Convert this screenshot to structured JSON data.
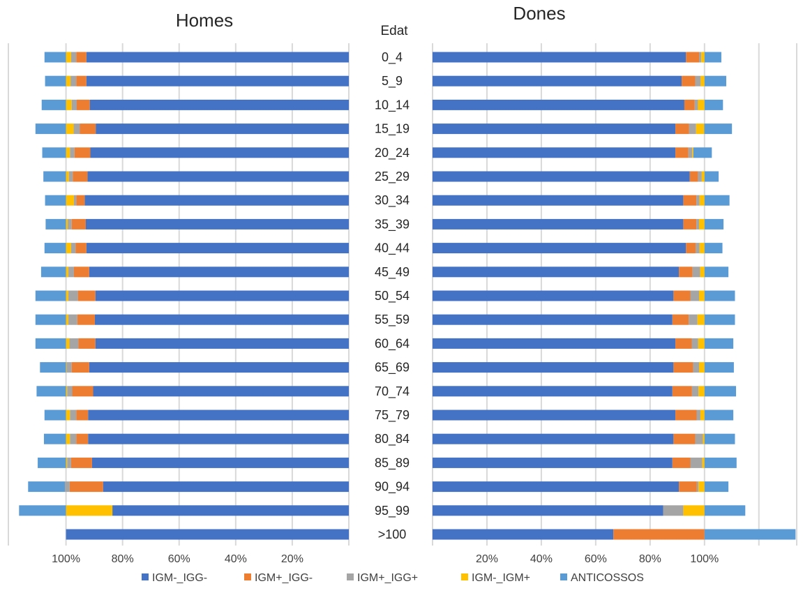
{
  "chart_data": {
    "type": "bar",
    "orientation": "horizontal",
    "stacked": "percent",
    "layout": "population-pyramid",
    "center_axis_title": "Edat",
    "categories": [
      "0_4",
      "5_9",
      "10_14",
      "15_19",
      "20_24",
      "25_29",
      "30_34",
      "35_39",
      "40_44",
      "45_49",
      "50_54",
      "55_59",
      "60_64",
      "65_69",
      "70_74",
      "75_79",
      "80_84",
      "85_89",
      "90_94",
      "95_99",
      ">100"
    ],
    "series_names": [
      "IGM-_IGG-",
      "IGM+_IGG-",
      "IGM+_IGG+",
      "IGM-_IGM+",
      "ANTICOSSOS"
    ],
    "colors": [
      "#4472c4",
      "#ed7d31",
      "#a5a5a5",
      "#ffc000",
      "#5b9bd5"
    ],
    "legend": {
      "position": "bottom"
    },
    "grid": true,
    "panels": [
      {
        "title": "Homes",
        "direction": "leftward",
        "xlim": [
          0,
          120
        ],
        "ticks": [
          {
            "value": 100,
            "label": "100%"
          },
          {
            "value": 80,
            "label": "80%"
          },
          {
            "value": 60,
            "label": "60%"
          },
          {
            "value": 40,
            "label": "40%"
          },
          {
            "value": 20,
            "label": "20%"
          }
        ],
        "series": [
          {
            "name": "IGM-_IGG-",
            "values": [
              92.8,
              92.8,
              91.6,
              89.5,
              91.4,
              92.4,
              93.4,
              93.0,
              92.8,
              91.8,
              89.6,
              89.8,
              89.6,
              91.8,
              90.4,
              92.2,
              92.2,
              90.8,
              86.9,
              83.6,
              100
            ]
          },
          {
            "name": "IGM+_IGG-",
            "values": [
              3.6,
              3.6,
              4.6,
              5.6,
              5.6,
              5.2,
              3.0,
              5.0,
              3.8,
              5.4,
              6.2,
              6.2,
              6.0,
              6.2,
              7.4,
              4.2,
              4.2,
              7.4,
              11.8,
              0,
              0
            ]
          },
          {
            "name": "IGM+_IGG+",
            "values": [
              1.8,
              2.0,
              1.8,
              2.2,
              1.6,
              1.4,
              0.8,
              1.4,
              1.6,
              2.0,
              3.4,
              3.2,
              3.2,
              1.8,
              1.8,
              2.2,
              2.2,
              1.4,
              1.7,
              0,
              0
            ]
          },
          {
            "name": "IGM-_IGM+",
            "values": [
              1.8,
              1.6,
              2.0,
              2.7,
              1.4,
              1.0,
              2.8,
              0.6,
              1.8,
              0.8,
              0.8,
              0.8,
              1.2,
              0.2,
              0.4,
              1.4,
              1.4,
              0.4,
              0,
              16.4,
              0
            ]
          },
          {
            "name": "ANTICOSSOS",
            "values": [
              7.6,
              7.4,
              8.6,
              10.8,
              8.4,
              8.0,
              7.4,
              7.2,
              7.6,
              8.8,
              10.8,
              10.8,
              10.8,
              9.2,
              10.4,
              7.6,
              7.8,
              10.0,
              13.0,
              16.6,
              0
            ]
          }
        ]
      },
      {
        "title": "Dones",
        "direction": "rightward",
        "xlim": [
          0,
          127
        ],
        "ticks": [
          {
            "value": 20,
            "label": "20%"
          },
          {
            "value": 40,
            "label": "40%"
          },
          {
            "value": 60,
            "label": "60%"
          },
          {
            "value": 80,
            "label": "80%"
          },
          {
            "value": 100,
            "label": "100%"
          }
        ],
        "series": [
          {
            "name": "IGM-_IGG-",
            "values": [
              93.2,
              91.6,
              92.6,
              89.3,
              89.3,
              94.6,
              92.2,
              92.2,
              93.2,
              90.6,
              88.6,
              88.2,
              89.3,
              88.6,
              88.2,
              89.3,
              88.6,
              88.2,
              90.6,
              84.8,
              66.5
            ]
          },
          {
            "name": "IGM+_IGG-",
            "values": [
              4.8,
              5.0,
              3.8,
              5.0,
              4.8,
              3.0,
              4.8,
              4.8,
              3.6,
              5.0,
              6.2,
              6.0,
              6.0,
              7.2,
              7.2,
              7.8,
              8.0,
              6.6,
              6.6,
              0,
              33.5
            ]
          },
          {
            "name": "IGM+_IGG+",
            "values": [
              0.8,
              2.0,
              1.2,
              2.6,
              1.4,
              1.4,
              1.2,
              1.0,
              1.4,
              2.8,
              3.2,
              3.2,
              2.4,
              2.2,
              2.4,
              1.4,
              2.8,
              4.4,
              0.6,
              7.4,
              0
            ]
          },
          {
            "name": "IGM-_IGM+",
            "values": [
              1.2,
              1.4,
              2.4,
              3.0,
              0.4,
              1.0,
              1.8,
              2.0,
              1.8,
              1.6,
              2.0,
              2.6,
              2.3,
              2.0,
              2.2,
              1.5,
              0.6,
              0.8,
              2.2,
              7.8,
              0
            ]
          },
          {
            "name": "ANTICOSSOS",
            "values": [
              6.2,
              8.0,
              6.8,
              10.2,
              6.8,
              5.2,
              9.2,
              7.0,
              6.6,
              8.8,
              11.2,
              11.2,
              10.6,
              10.8,
              11.6,
              10.6,
              11.2,
              11.8,
              8.8,
              15.0,
              33.5
            ]
          }
        ]
      }
    ]
  }
}
